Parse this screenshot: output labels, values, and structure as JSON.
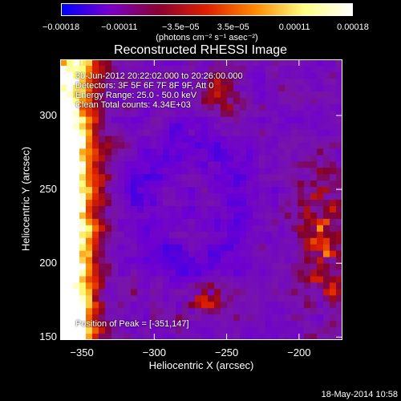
{
  "colorbar": {
    "ticks": [
      "−0.00018",
      "−0.00011",
      "−3.5e−05",
      "3.5e−05",
      "0.00011",
      "0.00018"
    ],
    "unit": "(photons cm⁻² s⁻¹ asec⁻²)",
    "colors": [
      "#0000ff",
      "#7a00cc",
      "#8a0030",
      "#e02000",
      "#ff8a00",
      "#ffff80",
      "#ffffff"
    ]
  },
  "chart_data": {
    "type": "heatmap",
    "title": "Reconstructed RHESSI Image",
    "xlabel": "Heliocentric X (arcsec)",
    "ylabel": "Heliocentric Y (arcsec)",
    "xlim": [
      -365,
      -170
    ],
    "ylim": [
      148,
      338
    ],
    "xticks": [
      -350,
      -300,
      -250,
      -200
    ],
    "yticks": [
      150,
      200,
      250,
      300
    ],
    "peak_position": [
      -351,
      147
    ]
  },
  "info": {
    "time": "30-Jun-2012 20:22:02.000 to 20:26:00.000",
    "detectors": "Detectors: 3F 5F 6F 7F 8F 9F, Att 0",
    "energy": "Energy Range: 25.0 - 50.0 keV",
    "clean": "Clean     Total counts: 4.34E+03",
    "peak": "Position of Peak = [-351,147]"
  },
  "footer": "18-May-2014 10:58"
}
